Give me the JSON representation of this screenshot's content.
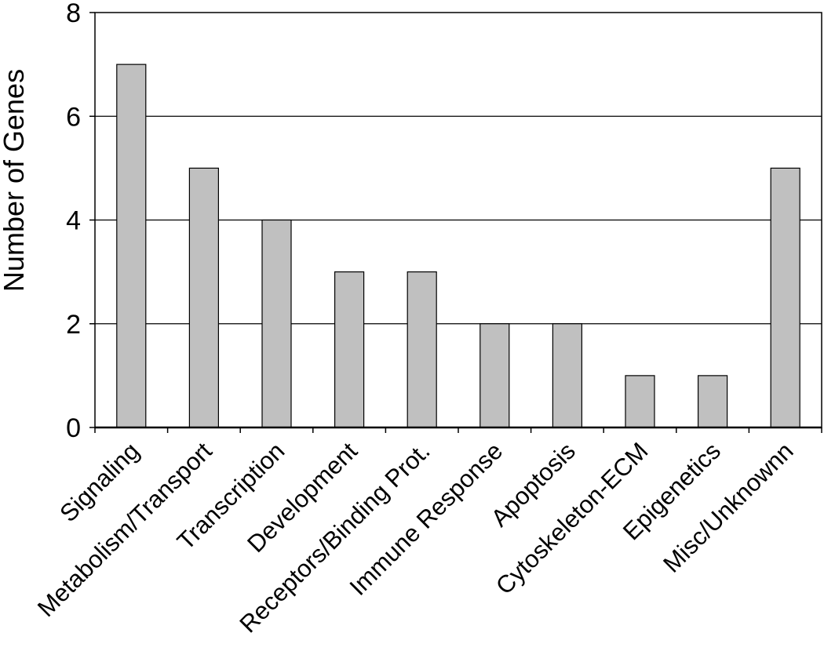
{
  "chart_data": {
    "type": "bar",
    "title": "",
    "xlabel": "",
    "ylabel": "Number of Genes",
    "categories": [
      "Signaling",
      "Metabolism/Transport",
      "Transcription",
      "Development",
      "Receptors/Binding Prot.",
      "Immune Response",
      "Apoptosis",
      "Cytoskeleton-ECM",
      "Epigenetics",
      "Misc/Unknownn"
    ],
    "values": [
      7,
      5,
      4,
      3,
      3,
      2,
      2,
      1,
      1,
      5
    ],
    "ylim": [
      0,
      8
    ],
    "yticks": [
      "0",
      "2",
      "4",
      "6",
      "8"
    ],
    "grid": "horizontal major gridlines",
    "legend": "none",
    "colors": {
      "bar_fill": "#c0c0c0",
      "bar_stroke": "#000000",
      "gridline": "#000000",
      "axis": "#000000",
      "background": "#ffffff"
    }
  }
}
